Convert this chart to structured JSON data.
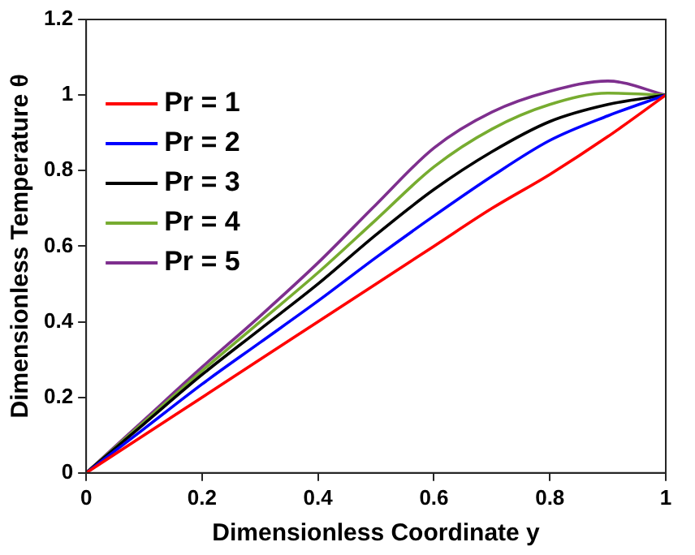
{
  "chart_data": {
    "type": "line",
    "xlabel": "Dimensionless Coordinate y",
    "ylabel": "Dimensionless Temperature θ",
    "x": [
      0,
      0.1,
      0.2,
      0.3,
      0.4,
      0.5,
      0.6,
      0.7,
      0.8,
      0.9,
      1
    ],
    "series": [
      {
        "name": "Pr = 1",
        "color": "#ff0000",
        "values": [
          0,
          0.1,
          0.2,
          0.3,
          0.4,
          0.5,
          0.6,
          0.7,
          0.79,
          0.89,
          1
        ]
      },
      {
        "name": "Pr = 2",
        "color": "#0000ff",
        "values": [
          0,
          0.117,
          0.235,
          0.345,
          0.455,
          0.57,
          0.68,
          0.785,
          0.88,
          0.945,
          1
        ]
      },
      {
        "name": "Pr = 3",
        "color": "#000000",
        "values": [
          0,
          0.13,
          0.26,
          0.38,
          0.5,
          0.63,
          0.75,
          0.85,
          0.93,
          0.975,
          1
        ]
      },
      {
        "name": "Pr = 4",
        "color": "#77ac30",
        "values": [
          0,
          0.135,
          0.27,
          0.4,
          0.53,
          0.67,
          0.81,
          0.91,
          0.975,
          1.005,
          1
        ]
      },
      {
        "name": "Pr = 5",
        "color": "#7e2f8e",
        "values": [
          0,
          0.14,
          0.28,
          0.415,
          0.556,
          0.71,
          0.86,
          0.955,
          1.01,
          1.037,
          1
        ]
      }
    ],
    "xlim": [
      0,
      1
    ],
    "xticks": [
      0,
      0.2,
      0.4,
      0.6,
      0.8,
      1
    ],
    "ylim": [
      0,
      1.2
    ],
    "yticks": [
      0,
      0.2,
      0.4,
      0.6,
      0.8,
      1,
      1.2
    ],
    "grid": false,
    "legend": "top left",
    "marker": "none",
    "line_style": "solid"
  }
}
